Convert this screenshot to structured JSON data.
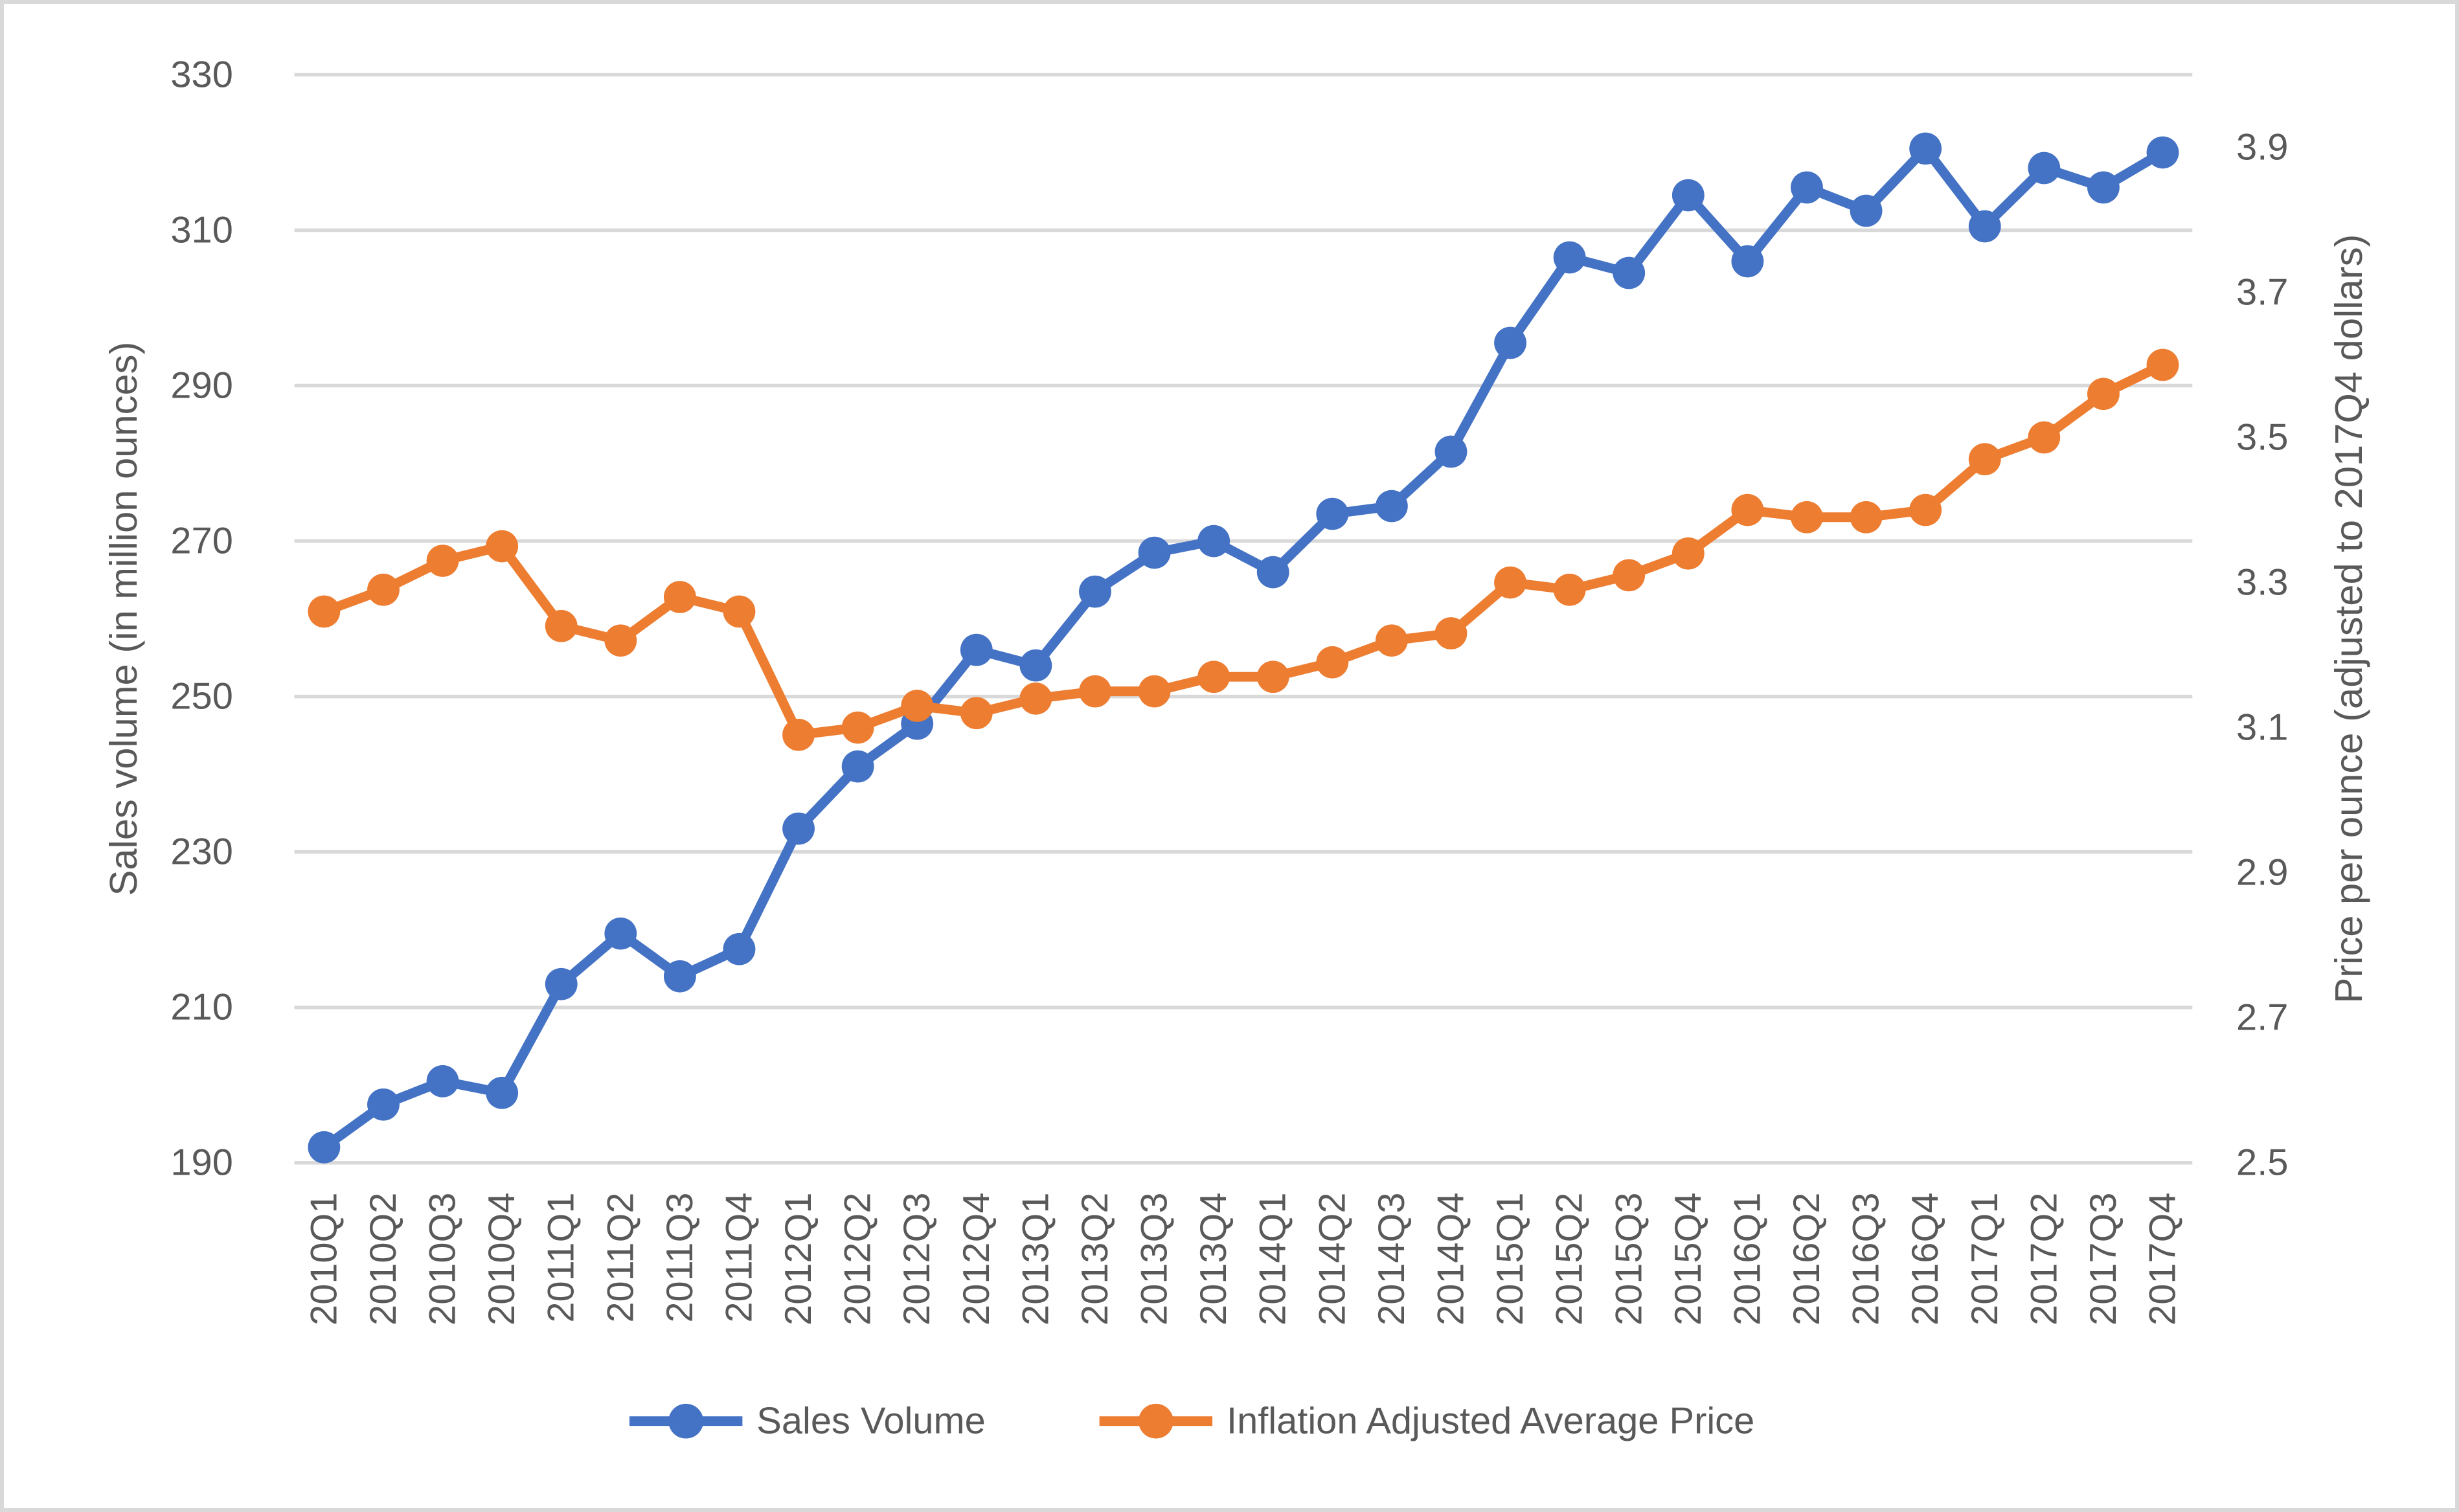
{
  "canvas": {
    "background": "#FFFFFF",
    "border_color": "#D9D9D9"
  },
  "chart_data": {
    "type": "line",
    "title": "",
    "grid": true,
    "legend_position": "bottom",
    "categories": [
      "2010Q1",
      "2010Q2",
      "2010Q3",
      "2010Q4",
      "2011Q1",
      "2011Q2",
      "2011Q3",
      "2011Q4",
      "2012Q1",
      "2012Q2",
      "2012Q3",
      "2012Q4",
      "2013Q1",
      "2013Q2",
      "2013Q3",
      "2013Q4",
      "2014Q1",
      "2014Q2",
      "2014Q3",
      "2014Q4",
      "2015Q1",
      "2015Q2",
      "2015Q3",
      "2015Q4",
      "2016Q1",
      "2016Q2",
      "2016Q3",
      "2016Q4",
      "2017Q1",
      "2017Q2",
      "2017Q3",
      "2017Q4"
    ],
    "series": [
      {
        "name": "Sales Volume",
        "axis": "left",
        "color": "#4472C4",
        "marker": "circle",
        "values": [
          192,
          197.5,
          200.5,
          199,
          213,
          219.5,
          214,
          217.5,
          233,
          241,
          246.5,
          256,
          254,
          263.5,
          268.5,
          270,
          266,
          273.5,
          274.5,
          281.5,
          295.5,
          306.5,
          304.5,
          314.5,
          306,
          315.5,
          312.5,
          320.5,
          310.5,
          318,
          315.5,
          320
        ]
      },
      {
        "name": "Inflation Adjusted Average Price",
        "axis": "right",
        "color": "#ED7D31",
        "marker": "circle",
        "values": [
          3.26,
          3.29,
          3.33,
          3.35,
          3.24,
          3.22,
          3.28,
          3.26,
          3.09,
          3.1,
          3.13,
          3.12,
          3.14,
          3.15,
          3.15,
          3.17,
          3.17,
          3.19,
          3.22,
          3.23,
          3.3,
          3.29,
          3.31,
          3.34,
          3.4,
          3.39,
          3.39,
          3.4,
          3.47,
          3.5,
          3.56,
          3.6
        ]
      }
    ],
    "left_axis": {
      "title": "Sales volume (in million ounces)",
      "tick_labels": [
        "190",
        "210",
        "230",
        "250",
        "270",
        "290",
        "310",
        "330"
      ],
      "tick_values": [
        190,
        210,
        230,
        250,
        270,
        290,
        310,
        330
      ],
      "range": [
        190,
        330
      ],
      "tick_step": 20
    },
    "right_axis": {
      "title": "Price per ounce (adjusted to 2017Q4 dollars)",
      "tick_labels": [
        "2.5",
        "2.7",
        "2.9",
        "3.1",
        "3.3",
        "3.5",
        "3.7",
        "3.9"
      ],
      "tick_values": [
        2.5,
        2.7,
        2.9,
        3.1,
        3.3,
        3.5,
        3.7,
        3.9
      ],
      "range": [
        2.5,
        4.0
      ],
      "tick_step": 0.2
    },
    "colors": {
      "gridline": "#D9D9D9",
      "text": "#595959",
      "series_blue": "#4472C4",
      "series_orange": "#ED7D31"
    }
  }
}
